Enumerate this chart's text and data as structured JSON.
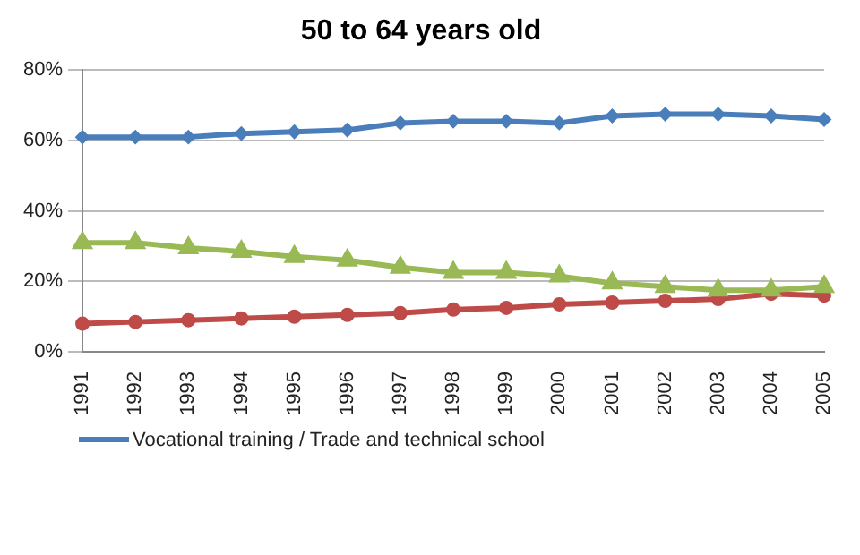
{
  "chart_data": {
    "type": "line",
    "title": "50 to 64 years old",
    "categories": [
      "1991",
      "1992",
      "1993",
      "1994",
      "1995",
      "1996",
      "1997",
      "1998",
      "1999",
      "2000",
      "2001",
      "2002",
      "2003",
      "2004",
      "2005"
    ],
    "series": [
      {
        "name": "Vocational training / Trade and technical school",
        "color": "#4a7ebb",
        "marker": "diamond",
        "values": [
          61,
          61,
          61,
          62,
          62.5,
          63,
          65,
          65.5,
          65.5,
          65,
          67,
          67.5,
          67.5,
          67,
          66
        ]
      },
      {
        "color": "#be4b48",
        "marker": "circle",
        "values": [
          8,
          8.5,
          9,
          9.5,
          10,
          10.5,
          11,
          12,
          12.5,
          13.5,
          14,
          14.5,
          15,
          16.5,
          16
        ]
      },
      {
        "color": "#98b954",
        "marker": "triangle",
        "values": [
          31,
          31,
          29.5,
          28.5,
          27,
          26,
          24,
          22.5,
          22.5,
          21.5,
          19.5,
          18.5,
          17.5,
          17.5,
          18.5
        ]
      }
    ],
    "ylim": [
      0,
      80
    ],
    "yticks": [
      {
        "value": 0,
        "label": "0%"
      },
      {
        "value": 20,
        "label": "20%"
      },
      {
        "value": 40,
        "label": "40%"
      },
      {
        "value": 60,
        "label": "60%"
      },
      {
        "value": 80,
        "label": "80%"
      }
    ],
    "grid": "y",
    "legend": "bottom left"
  }
}
